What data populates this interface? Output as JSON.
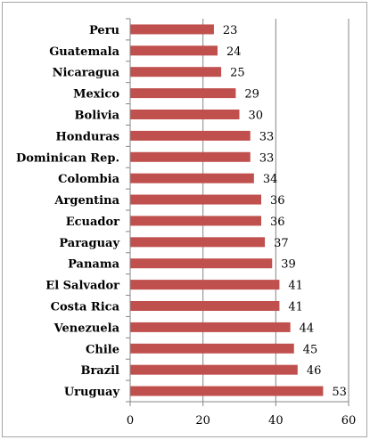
{
  "chart_data": {
    "type": "bar",
    "orientation": "horizontal",
    "categories": [
      "Peru",
      "Guatemala",
      "Nicaragua",
      "Mexico",
      "Bolivia",
      "Honduras",
      "Dominican Rep.",
      "Colombia",
      "Argentina",
      "Ecuador",
      "Paraguay",
      "Panama",
      "El Salvador",
      "Costa Rica",
      "Venezuela",
      "Chile",
      "Brazil",
      "Uruguay"
    ],
    "values": [
      23,
      24,
      25,
      29,
      30,
      33,
      33,
      34,
      36,
      36,
      37,
      39,
      41,
      41,
      44,
      45,
      46,
      53
    ],
    "value_labels": [
      "23",
      "24",
      "25",
      "29",
      "30",
      "33",
      "33",
      "34",
      "36",
      "36",
      "37",
      "39",
      "41",
      "41",
      "44",
      "45",
      "46",
      "53"
    ],
    "xlim": [
      0,
      60
    ],
    "x_ticks": [
      0,
      20,
      40,
      60
    ],
    "x_tick_labels": [
      "0",
      "20",
      "40",
      "60"
    ],
    "grid": "vertical",
    "bar_color": "#c0504d",
    "grid_color": "#868686",
    "title": "",
    "xlabel": "",
    "ylabel": ""
  }
}
